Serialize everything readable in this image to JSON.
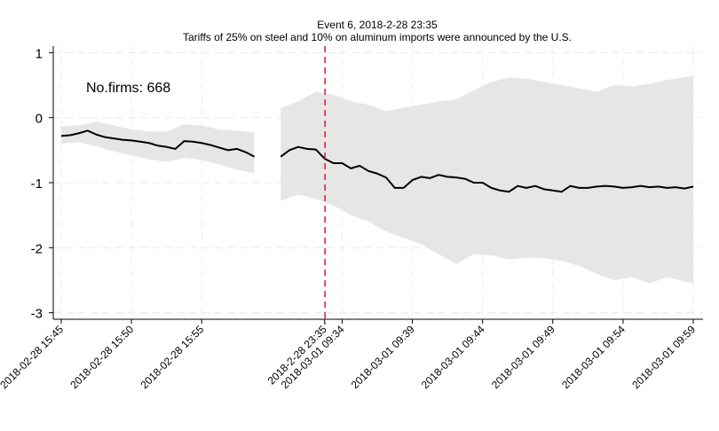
{
  "chart_data": {
    "type": "line",
    "title": "Event 6, 2018-2-28 23:35",
    "subtitle": "Tariffs of 25% on steel and 10% on aluminum imports were announced by the U.S.",
    "annotation": "No.firms: 668",
    "xlabel": "",
    "ylabel": "",
    "ylim": [
      -3.1,
      1.1
    ],
    "yticks": [
      1,
      0,
      -1,
      -2,
      -3
    ],
    "grid": true,
    "event_marker": {
      "index": 30,
      "style": "dashed",
      "color": "#e41a1c"
    },
    "x_tick_labels": [
      "2018-02-28 15:45",
      "2018-02-28 15:50",
      "2018-02-28 15:55",
      "2018-2-28 23:35",
      "2018-03-01 09:34",
      "2018-03-01 09:39",
      "2018-03-01 09:44",
      "2018-03-01 09:49",
      "2018-03-01 09:54",
      "2018-03-01 09:59"
    ],
    "x_tick_positions": [
      0,
      8,
      16,
      30,
      32,
      40,
      48,
      56,
      64,
      72
    ],
    "series": [
      {
        "type": "line",
        "color": "#000000",
        "segments": [
          {
            "x": [
              0,
              1,
              2,
              3,
              4,
              5,
              6,
              7,
              8,
              9,
              10,
              11,
              12,
              13,
              14,
              15,
              16,
              17,
              18,
              19,
              20,
              21,
              22
            ],
            "y": [
              -0.28,
              -0.27,
              -0.24,
              -0.2,
              -0.26,
              -0.3,
              -0.32,
              -0.34,
              -0.35,
              -0.37,
              -0.39,
              -0.43,
              -0.45,
              -0.48,
              -0.36,
              -0.37,
              -0.39,
              -0.42,
              -0.46,
              -0.5,
              -0.48,
              -0.53,
              -0.6
            ]
          },
          {
            "x": [
              25,
              26,
              27,
              28,
              29,
              30,
              31,
              32,
              33,
              34,
              35,
              36,
              37,
              38,
              39,
              40,
              41,
              42,
              43,
              44,
              45,
              46,
              47,
              48,
              49,
              50,
              51,
              52,
              53,
              54,
              55,
              56,
              57,
              58,
              59,
              60,
              61,
              62,
              63,
              64,
              65,
              66,
              67,
              68,
              69,
              70,
              71,
              72
            ],
            "y": [
              -0.6,
              -0.5,
              -0.45,
              -0.48,
              -0.49,
              -0.63,
              -0.7,
              -0.7,
              -0.78,
              -0.74,
              -0.82,
              -0.86,
              -0.92,
              -1.08,
              -1.08,
              -0.96,
              -0.91,
              -0.93,
              -0.88,
              -0.91,
              -0.92,
              -0.94,
              -1.0,
              -1.0,
              -1.08,
              -1.12,
              -1.14,
              -1.05,
              -1.08,
              -1.05,
              -1.1,
              -1.12,
              -1.14,
              -1.05,
              -1.08,
              -1.08,
              -1.06,
              -1.05,
              -1.06,
              -1.08,
              -1.07,
              -1.05,
              -1.07,
              -1.06,
              -1.08,
              -1.07,
              -1.09,
              -1.06
            ]
          }
        ]
      },
      {
        "type": "band",
        "color": "#e6e6e6",
        "segments": [
          {
            "x": [
              0,
              2,
              4,
              6,
              8,
              10,
              12,
              14,
              16,
              18,
              20,
              22
            ],
            "upper": [
              -0.13,
              -0.12,
              -0.06,
              -0.12,
              -0.18,
              -0.21,
              -0.22,
              -0.1,
              -0.12,
              -0.18,
              -0.2,
              -0.23
            ],
            "lower": [
              -0.4,
              -0.38,
              -0.44,
              -0.52,
              -0.58,
              -0.64,
              -0.68,
              -0.62,
              -0.65,
              -0.72,
              -0.8,
              -0.85
            ]
          },
          {
            "x": [
              25,
              27,
              29,
              31,
              33,
              35,
              37,
              39,
              41,
              43,
              45,
              47,
              49,
              51,
              53,
              55,
              57,
              59,
              61,
              63,
              65,
              67,
              69,
              71,
              72
            ],
            "upper": [
              0.15,
              0.25,
              0.4,
              0.35,
              0.25,
              0.2,
              0.1,
              0.15,
              0.2,
              0.25,
              0.28,
              0.42,
              0.55,
              0.62,
              0.6,
              0.55,
              0.5,
              0.45,
              0.4,
              0.5,
              0.48,
              0.52,
              0.58,
              0.62,
              0.64
            ],
            "lower": [
              -1.28,
              -1.18,
              -1.25,
              -1.35,
              -1.5,
              -1.6,
              -1.75,
              -1.85,
              -1.95,
              -2.1,
              -2.25,
              -2.1,
              -2.12,
              -2.18,
              -2.15,
              -2.16,
              -2.2,
              -2.28,
              -2.4,
              -2.5,
              -2.45,
              -2.55,
              -2.45,
              -2.52,
              -2.55
            ]
          }
        ]
      }
    ]
  }
}
